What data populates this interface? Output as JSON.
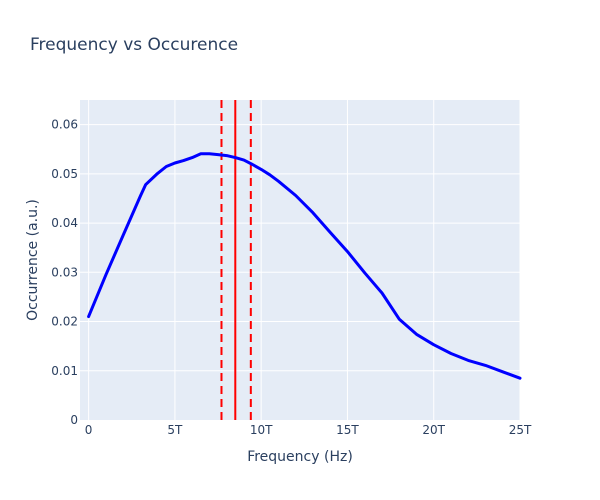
{
  "chart_data": {
    "type": "line",
    "title": "Frequency vs Occurence",
    "xlabel": "Frequency (Hz)",
    "ylabel": "Occurrence (a.u.)",
    "xlim": [
      -500000000000.0,
      25000000000000.0
    ],
    "ylim": [
      0,
      0.065
    ],
    "x_ticks": [
      {
        "value": 0,
        "label": "0"
      },
      {
        "value": 5000000000000.0,
        "label": "5T"
      },
      {
        "value": 10000000000000.0,
        "label": "10T"
      },
      {
        "value": 15000000000000.0,
        "label": "15T"
      },
      {
        "value": 20000000000000.0,
        "label": "20T"
      },
      {
        "value": 25000000000000.0,
        "label": "25T"
      }
    ],
    "y_ticks": [
      {
        "value": 0,
        "label": "0"
      },
      {
        "value": 0.01,
        "label": "0.01"
      },
      {
        "value": 0.02,
        "label": "0.02"
      },
      {
        "value": 0.03,
        "label": "0.03"
      },
      {
        "value": 0.04,
        "label": "0.04"
      },
      {
        "value": 0.05,
        "label": "0.05"
      },
      {
        "value": 0.06,
        "label": "0.06"
      }
    ],
    "grid": true,
    "series": [
      {
        "color": "#0000ff",
        "x": [
          0,
          1000000000000.0,
          2000000000000.0,
          3000000000000.0,
          3300000000000.0,
          4000000000000.0,
          4500000000000.0,
          5000000000000.0,
          5500000000000.0,
          6000000000000.0,
          6500000000000.0,
          7000000000000.0,
          7500000000000.0,
          8000000000000.0,
          8500000000000.0,
          9000000000000.0,
          9500000000000.0,
          10000000000000.0,
          10500000000000.0,
          11000000000000.0,
          12000000000000.0,
          13000000000000.0,
          14000000000000.0,
          15000000000000.0,
          16000000000000.0,
          17000000000000.0,
          18000000000000.0,
          19000000000000.0,
          20000000000000.0,
          21000000000000.0,
          22000000000000.0,
          23000000000000.0,
          24000000000000.0,
          25000000000000.0
        ],
        "y": [
          0.021,
          0.0295,
          0.0375,
          0.0455,
          0.0478,
          0.0501,
          0.0515,
          0.0522,
          0.0527,
          0.0533,
          0.0541,
          0.0541,
          0.0539,
          0.0537,
          0.0533,
          0.0528,
          0.0519,
          0.0509,
          0.0498,
          0.0485,
          0.0456,
          0.0421,
          0.0381,
          0.0342,
          0.0299,
          0.0258,
          0.0205,
          0.0174,
          0.0153,
          0.0135,
          0.0121,
          0.0111,
          0.0098,
          0.0085
        ]
      }
    ],
    "vertical_lines": [
      {
        "x": 8500000000000.0,
        "color": "#ff0000",
        "style": "solid"
      },
      {
        "x": 7700000000000.0,
        "color": "#ff0000",
        "style": "dash"
      },
      {
        "x": 9400000000000.0,
        "color": "#ff0000",
        "style": "dash"
      }
    ],
    "colors": {
      "plot_bg": "#e5ecf6",
      "grid": "#ffffff",
      "text": "#2a3f5f"
    }
  }
}
